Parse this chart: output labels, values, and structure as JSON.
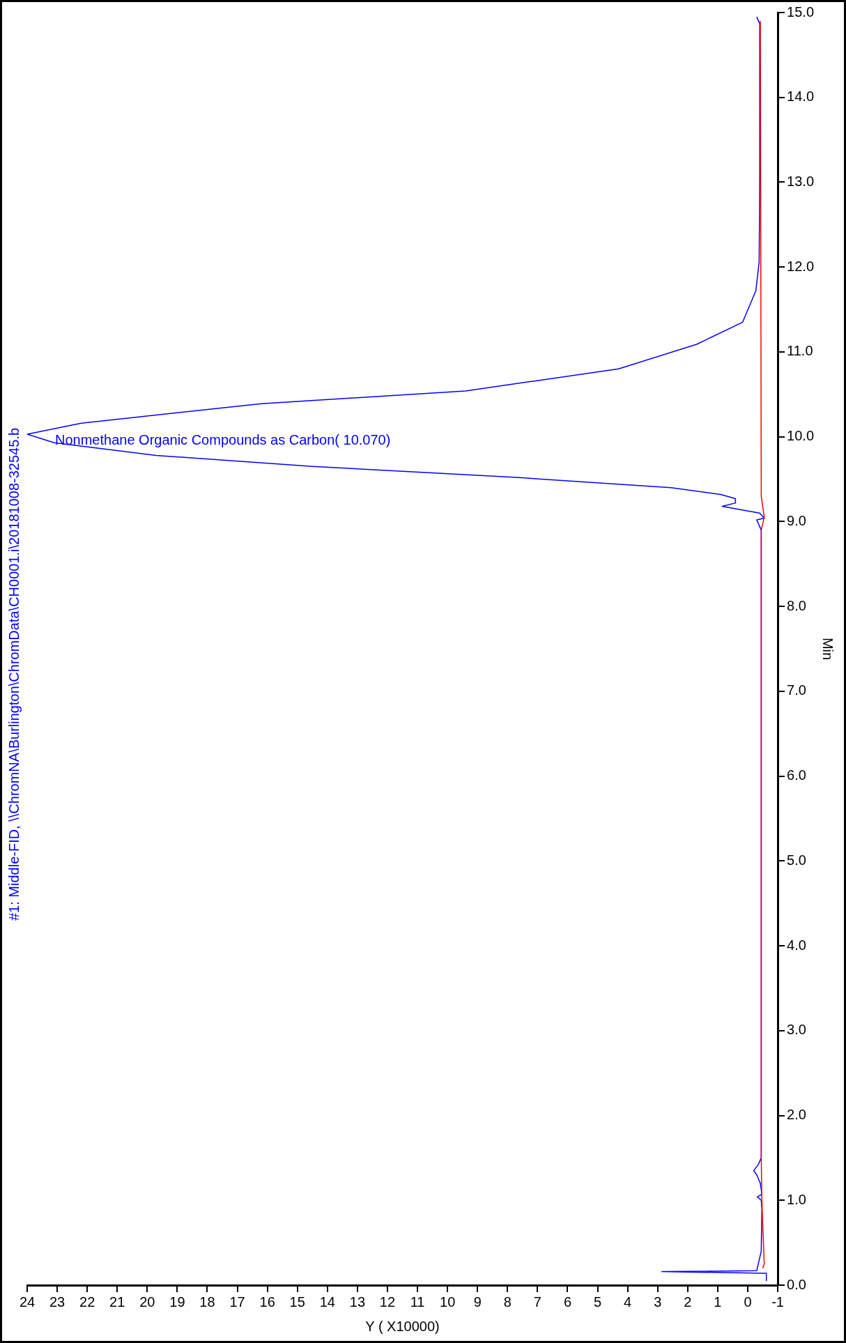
{
  "chart_data": {
    "type": "line",
    "title": "#1: Middle-FID, \\\\ChromNA\\Burlington\\ChromData\\CH0001.i\\20181008-32545.b",
    "xlabel": "Y ( X10000)",
    "ylabel": "Min",
    "annotations": [
      {
        "text": "Nonmethane Organic Compounds as Carbon( 10.070)",
        "x": 24,
        "y": 10.07
      }
    ],
    "ylim": [
      0,
      15
    ],
    "yticks": [
      {
        "value": 0,
        "label": "0.0"
      },
      {
        "value": 1,
        "label": "1.0"
      },
      {
        "value": 2,
        "label": "2.0"
      },
      {
        "value": 3,
        "label": "3.0"
      },
      {
        "value": 4,
        "label": "4.0"
      },
      {
        "value": 5,
        "label": "5.0"
      },
      {
        "value": 6,
        "label": "6.0"
      },
      {
        "value": 7,
        "label": "7.0"
      },
      {
        "value": 8,
        "label": "8.0"
      },
      {
        "value": 9,
        "label": "9.0"
      },
      {
        "value": 10,
        "label": "10.0"
      },
      {
        "value": 11,
        "label": "11.0"
      },
      {
        "value": 12,
        "label": "12.0"
      },
      {
        "value": 13,
        "label": "13.0"
      },
      {
        "value": 14,
        "label": "14.0"
      },
      {
        "value": 15,
        "label": "15.0"
      }
    ],
    "xlim": [
      24,
      -1
    ],
    "xticks": [
      -1,
      0,
      1,
      2,
      3,
      4,
      5,
      6,
      7,
      8,
      9,
      10,
      11,
      12,
      13,
      14,
      15,
      16,
      17,
      18,
      19,
      20,
      21,
      22,
      23,
      24
    ],
    "grid": false,
    "marker": "none",
    "series": [
      {
        "color": "#0000ff",
        "values": [
          0.05,
          0.14,
          0.16,
          0.17,
          0.25,
          0.4,
          0.9,
          1.0,
          1.04,
          1.07,
          1.2,
          1.3,
          1.35,
          1.42,
          1.5,
          8.9,
          9.02,
          9.04,
          9.1,
          9.18,
          9.22,
          9.27,
          9.32,
          9.4,
          9.52,
          9.65,
          9.78,
          9.93,
          10.03,
          10.16,
          10.39,
          10.54,
          10.8,
          11.09,
          11.35,
          11.72,
          12.06,
          13.0,
          14.87,
          14.95
        ],
        "x": [
          -0.62,
          -0.62,
          2.86,
          -0.3,
          -0.35,
          -0.45,
          -0.47,
          -0.45,
          -0.32,
          -0.47,
          -0.42,
          -0.3,
          -0.2,
          -0.35,
          -0.45,
          -0.45,
          -0.3,
          -0.55,
          -0.4,
          0.85,
          0.4,
          0.41,
          0.9,
          2.55,
          7.7,
          14.5,
          19.7,
          23.1,
          24.0,
          22.2,
          16.2,
          9.4,
          4.3,
          1.7,
          0.17,
          -0.27,
          -0.38,
          -0.4,
          -0.4,
          -0.3
        ]
      },
      {
        "color": "#ff0000",
        "values": [
          0.2,
          0.25,
          1.0,
          1.5,
          8.9,
          9.05,
          9.3,
          14.9
        ],
        "x": [
          -0.5,
          -0.55,
          -0.47,
          -0.45,
          -0.45,
          -0.55,
          -0.45,
          -0.42
        ]
      }
    ]
  }
}
